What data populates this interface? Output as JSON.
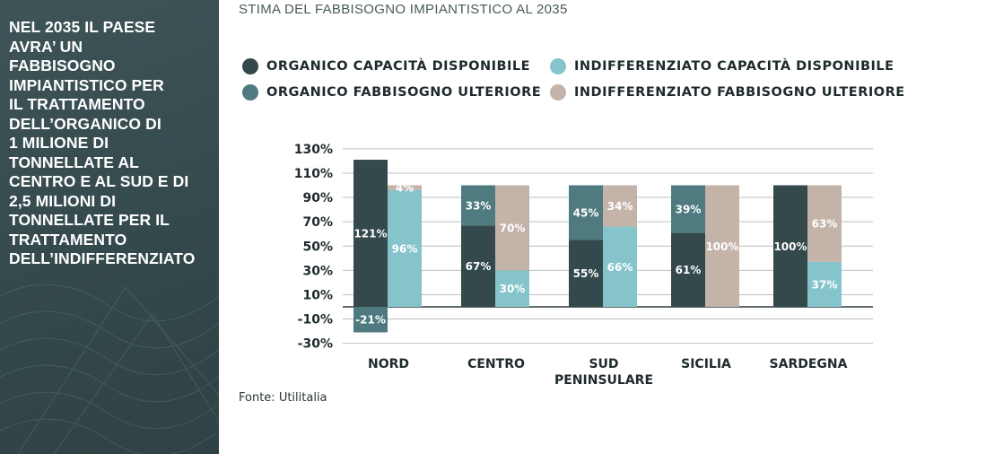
{
  "sidebar": {
    "text": "NEL 2035 IL PAESE\nAVRA’ UN\nFABBISOGNO\nIMPIANTISTICO PER\nIL TRATTAMENTO\nDELL’ORGANICO DI\n1 MILIONE DI\nTONNELLATE AL\nCENTRO E AL SUD E DI\n2,5 MILIONI DI\nTONNELLATE PER IL\nTRATTAMENTO\nDELL’INDIFFERENZIATO"
  },
  "source": "Fonte: Utilitalia",
  "colors": {
    "organico_disponibile": "#33494b",
    "organico_ulteriore": "#4e7a80",
    "indiff_disponibile": "#86c4cc",
    "indiff_ulteriore": "#c4b3a9",
    "grid": "#b9c0c1",
    "sidebar": "#3a4f52"
  },
  "chart_data": {
    "type": "bar",
    "stacked": true,
    "title": "STIMA DEL FABBISOGNO IMPIANTISTICO AL 2035",
    "categories": [
      "NORD",
      "CENTRO",
      "SUD\nPENINSULARE",
      "SICILIA",
      "SARDEGNA"
    ],
    "yticks": [
      "130%",
      "110%",
      "90%",
      "70%",
      "50%",
      "30%",
      "10%",
      "-10%",
      "-30%"
    ],
    "ylim": [
      -30,
      130
    ],
    "grid": true,
    "legend_position": "top",
    "series": [
      {
        "name": "ORGANICO CAPACITÀ DISPONIBILE",
        "color": "#33494b",
        "group": "organico",
        "values": [
          121,
          67,
          55,
          61,
          100
        ],
        "labels": [
          "121%",
          "67%",
          "55%",
          "61%",
          "100%"
        ]
      },
      {
        "name": "ORGANICO FABBISOGNO ULTERIORE",
        "color": "#4e7a80",
        "group": "organico",
        "values": [
          -21,
          33,
          45,
          39,
          0
        ],
        "labels": [
          "-21%",
          "33%",
          "45%",
          "39%",
          ""
        ]
      },
      {
        "name": "INDIFFERENZIATO CAPACITÀ DISPONIBILE",
        "color": "#86c4cc",
        "group": "indifferenziato",
        "values": [
          96,
          30,
          66,
          0,
          37
        ],
        "labels": [
          "96%",
          "30%",
          "66%",
          "",
          "37%"
        ]
      },
      {
        "name": "INDIFFERENZIATO FABBISOGNO ULTERIORE",
        "color": "#c4b3a9",
        "group": "indifferenziato",
        "values": [
          4,
          70,
          34,
          100,
          63
        ],
        "labels": [
          "4%",
          "70%",
          "34%",
          "100%",
          "63%"
        ]
      }
    ]
  }
}
